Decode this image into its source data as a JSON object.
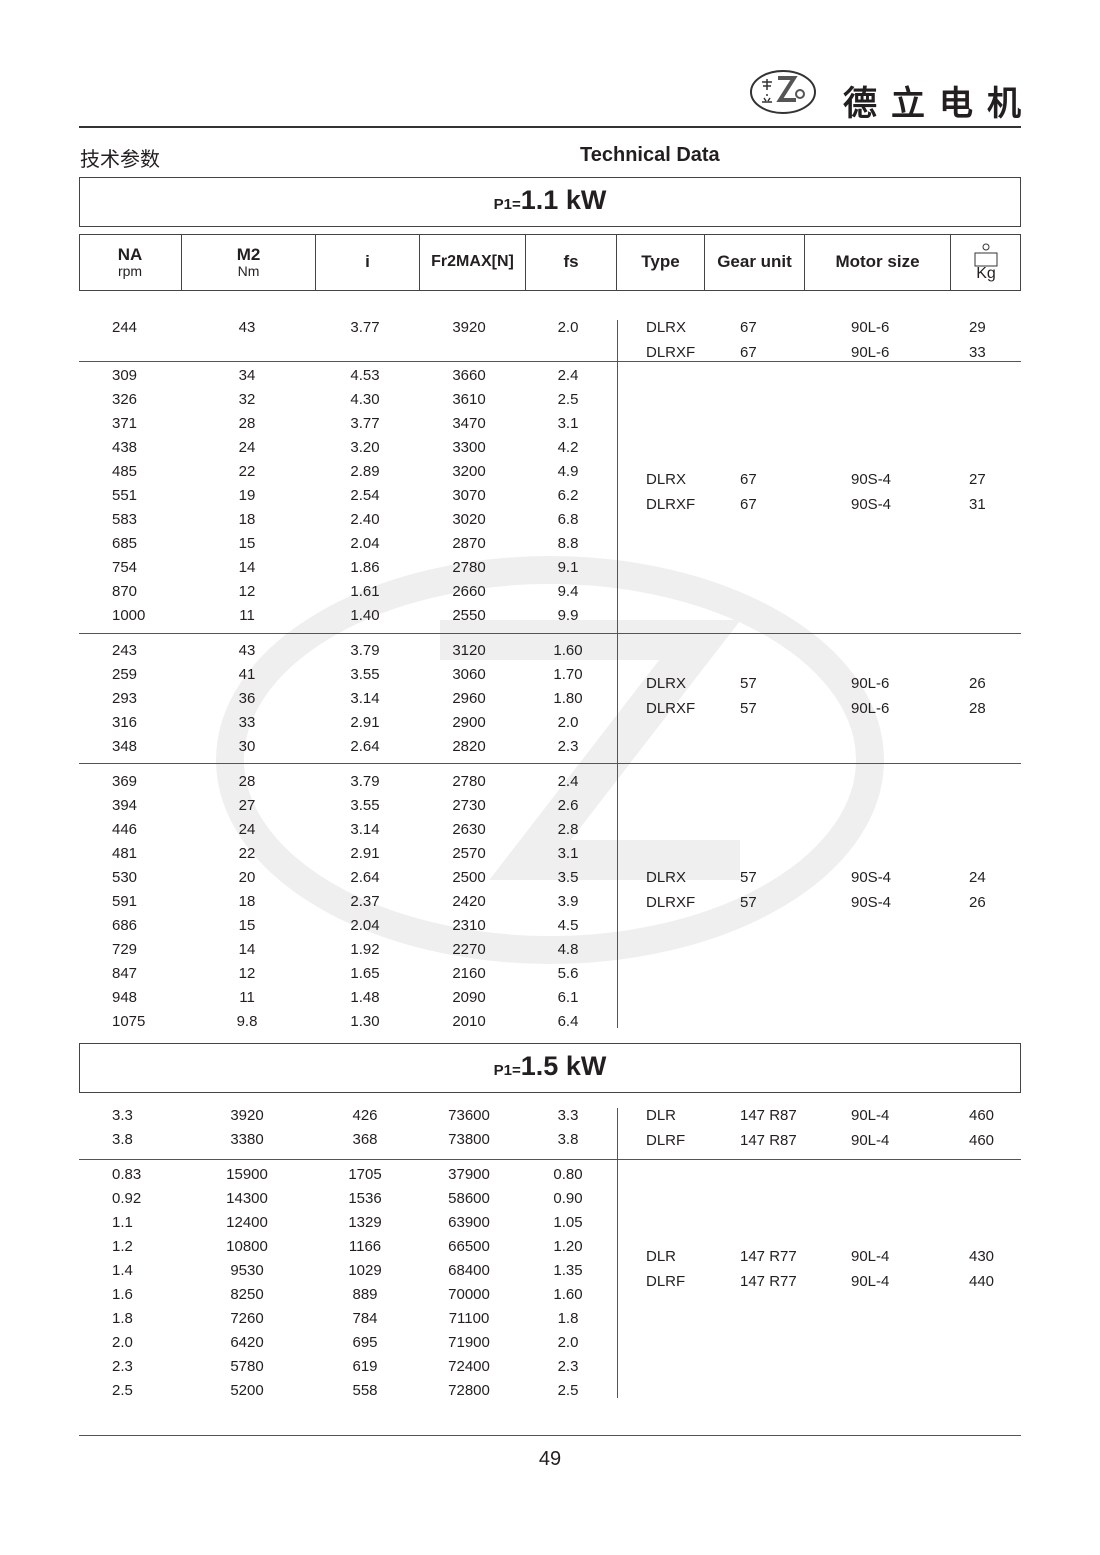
{
  "header": {
    "brand_name": "德立电机",
    "logo_text": "De Li Gear Motor",
    "logo_chars": "德立",
    "title_cn": "技术参数",
    "title_en": "Technical Data"
  },
  "columns": {
    "na": {
      "main": "NA",
      "unit": "rpm"
    },
    "m2": {
      "main": "M2",
      "unit": "Nm"
    },
    "i": "i",
    "fr": "Fr2MAX[N]",
    "fs": "fs",
    "type": "Type",
    "gear_unit": "Gear unit",
    "motor_size": "Motor size",
    "weight": {
      "icon": "weight-icon",
      "unit": "Kg"
    }
  },
  "sections": [
    {
      "power_prefix": "P1=",
      "power_value": "1.1 kW",
      "groups": [
        {
          "rows": [
            [
              "244",
              "43",
              "3.77",
              "3920",
              "2.0"
            ]
          ],
          "right": [
            [
              "DLRX",
              "67",
              "90L-6",
              "29"
            ],
            [
              "DLRXF",
              "67",
              "90L-6",
              "33"
            ]
          ]
        },
        {
          "rows": [
            [
              "309",
              "34",
              "4.53",
              "3660",
              "2.4"
            ],
            [
              "326",
              "32",
              "4.30",
              "3610",
              "2.5"
            ],
            [
              "371",
              "28",
              "3.77",
              "3470",
              "3.1"
            ],
            [
              "438",
              "24",
              "3.20",
              "3300",
              "4.2"
            ],
            [
              "485",
              "22",
              "2.89",
              "3200",
              "4.9"
            ],
            [
              "551",
              "19",
              "2.54",
              "3070",
              "6.2"
            ],
            [
              "583",
              "18",
              "2.40",
              "3020",
              "6.8"
            ],
            [
              "685",
              "15",
              "2.04",
              "2870",
              "8.8"
            ],
            [
              "754",
              "14",
              "1.86",
              "2780",
              "9.1"
            ],
            [
              "870",
              "12",
              "1.61",
              "2660",
              "9.4"
            ],
            [
              "1000",
              "11",
              "1.40",
              "2550",
              "9.9"
            ]
          ],
          "right": [
            [
              "DLRX",
              "67",
              "90S-4",
              "27"
            ],
            [
              "DLRXF",
              "67",
              "90S-4",
              "31"
            ]
          ]
        },
        {
          "rows": [
            [
              "243",
              "43",
              "3.79",
              "3120",
              "1.60"
            ],
            [
              "259",
              "41",
              "3.55",
              "3060",
              "1.70"
            ],
            [
              "293",
              "36",
              "3.14",
              "2960",
              "1.80"
            ],
            [
              "316",
              "33",
              "2.91",
              "2900",
              "2.0"
            ],
            [
              "348",
              "30",
              "2.64",
              "2820",
              "2.3"
            ]
          ],
          "right": [
            [
              "DLRX",
              "57",
              "90L-6",
              "26"
            ],
            [
              "DLRXF",
              "57",
              "90L-6",
              "28"
            ]
          ]
        },
        {
          "rows": [
            [
              "369",
              "28",
              "3.79",
              "2780",
              "2.4"
            ],
            [
              "394",
              "27",
              "3.55",
              "2730",
              "2.6"
            ],
            [
              "446",
              "24",
              "3.14",
              "2630",
              "2.8"
            ],
            [
              "481",
              "22",
              "2.91",
              "2570",
              "3.1"
            ],
            [
              "530",
              "20",
              "2.64",
              "2500",
              "3.5"
            ],
            [
              "591",
              "18",
              "2.37",
              "2420",
              "3.9"
            ],
            [
              "686",
              "15",
              "2.04",
              "2310",
              "4.5"
            ],
            [
              "729",
              "14",
              "1.92",
              "2270",
              "4.8"
            ],
            [
              "847",
              "12",
              "1.65",
              "2160",
              "5.6"
            ],
            [
              "948",
              "11",
              "1.48",
              "2090",
              "6.1"
            ],
            [
              "1075",
              "9.8",
              "1.30",
              "2010",
              "6.4"
            ]
          ],
          "right": [
            [
              "DLRX",
              "57",
              "90S-4",
              "24"
            ],
            [
              "DLRXF",
              "57",
              "90S-4",
              "26"
            ]
          ]
        }
      ]
    },
    {
      "power_prefix": "P1=",
      "power_value": "1.5 kW",
      "groups": [
        {
          "rows": [
            [
              "3.3",
              "3920",
              "426",
              "73600",
              "3.3"
            ],
            [
              "3.8",
              "3380",
              "368",
              "73800",
              "3.8"
            ]
          ],
          "right": [
            [
              "DLR",
              "147 R87",
              "90L-4",
              "460"
            ],
            [
              "DLRF",
              "147 R87",
              "90L-4",
              "460"
            ]
          ]
        },
        {
          "rows": [
            [
              "0.83",
              "15900",
              "1705",
              "37900",
              "0.80"
            ],
            [
              "0.92",
              "14300",
              "1536",
              "58600",
              "0.90"
            ],
            [
              "1.1",
              "12400",
              "1329",
              "63900",
              "1.05"
            ],
            [
              "1.2",
              "10800",
              "1166",
              "66500",
              "1.20"
            ],
            [
              "1.4",
              "9530",
              "1029",
              "68400",
              "1.35"
            ],
            [
              "1.6",
              "8250",
              "889",
              "70000",
              "1.60"
            ],
            [
              "1.8",
              "7260",
              "784",
              "71100",
              "1.8"
            ],
            [
              "2.0",
              "6420",
              "695",
              "71900",
              "2.0"
            ],
            [
              "2.3",
              "5780",
              "619",
              "72400",
              "2.3"
            ],
            [
              "2.5",
              "5200",
              "558",
              "72800",
              "2.5"
            ]
          ],
          "right": [
            [
              "DLR",
              "147 R77",
              "90L-4",
              "430"
            ],
            [
              "DLRF",
              "147 R77",
              "90L-4",
              "440"
            ]
          ]
        }
      ]
    }
  ],
  "footer": {
    "page_number": "49"
  }
}
